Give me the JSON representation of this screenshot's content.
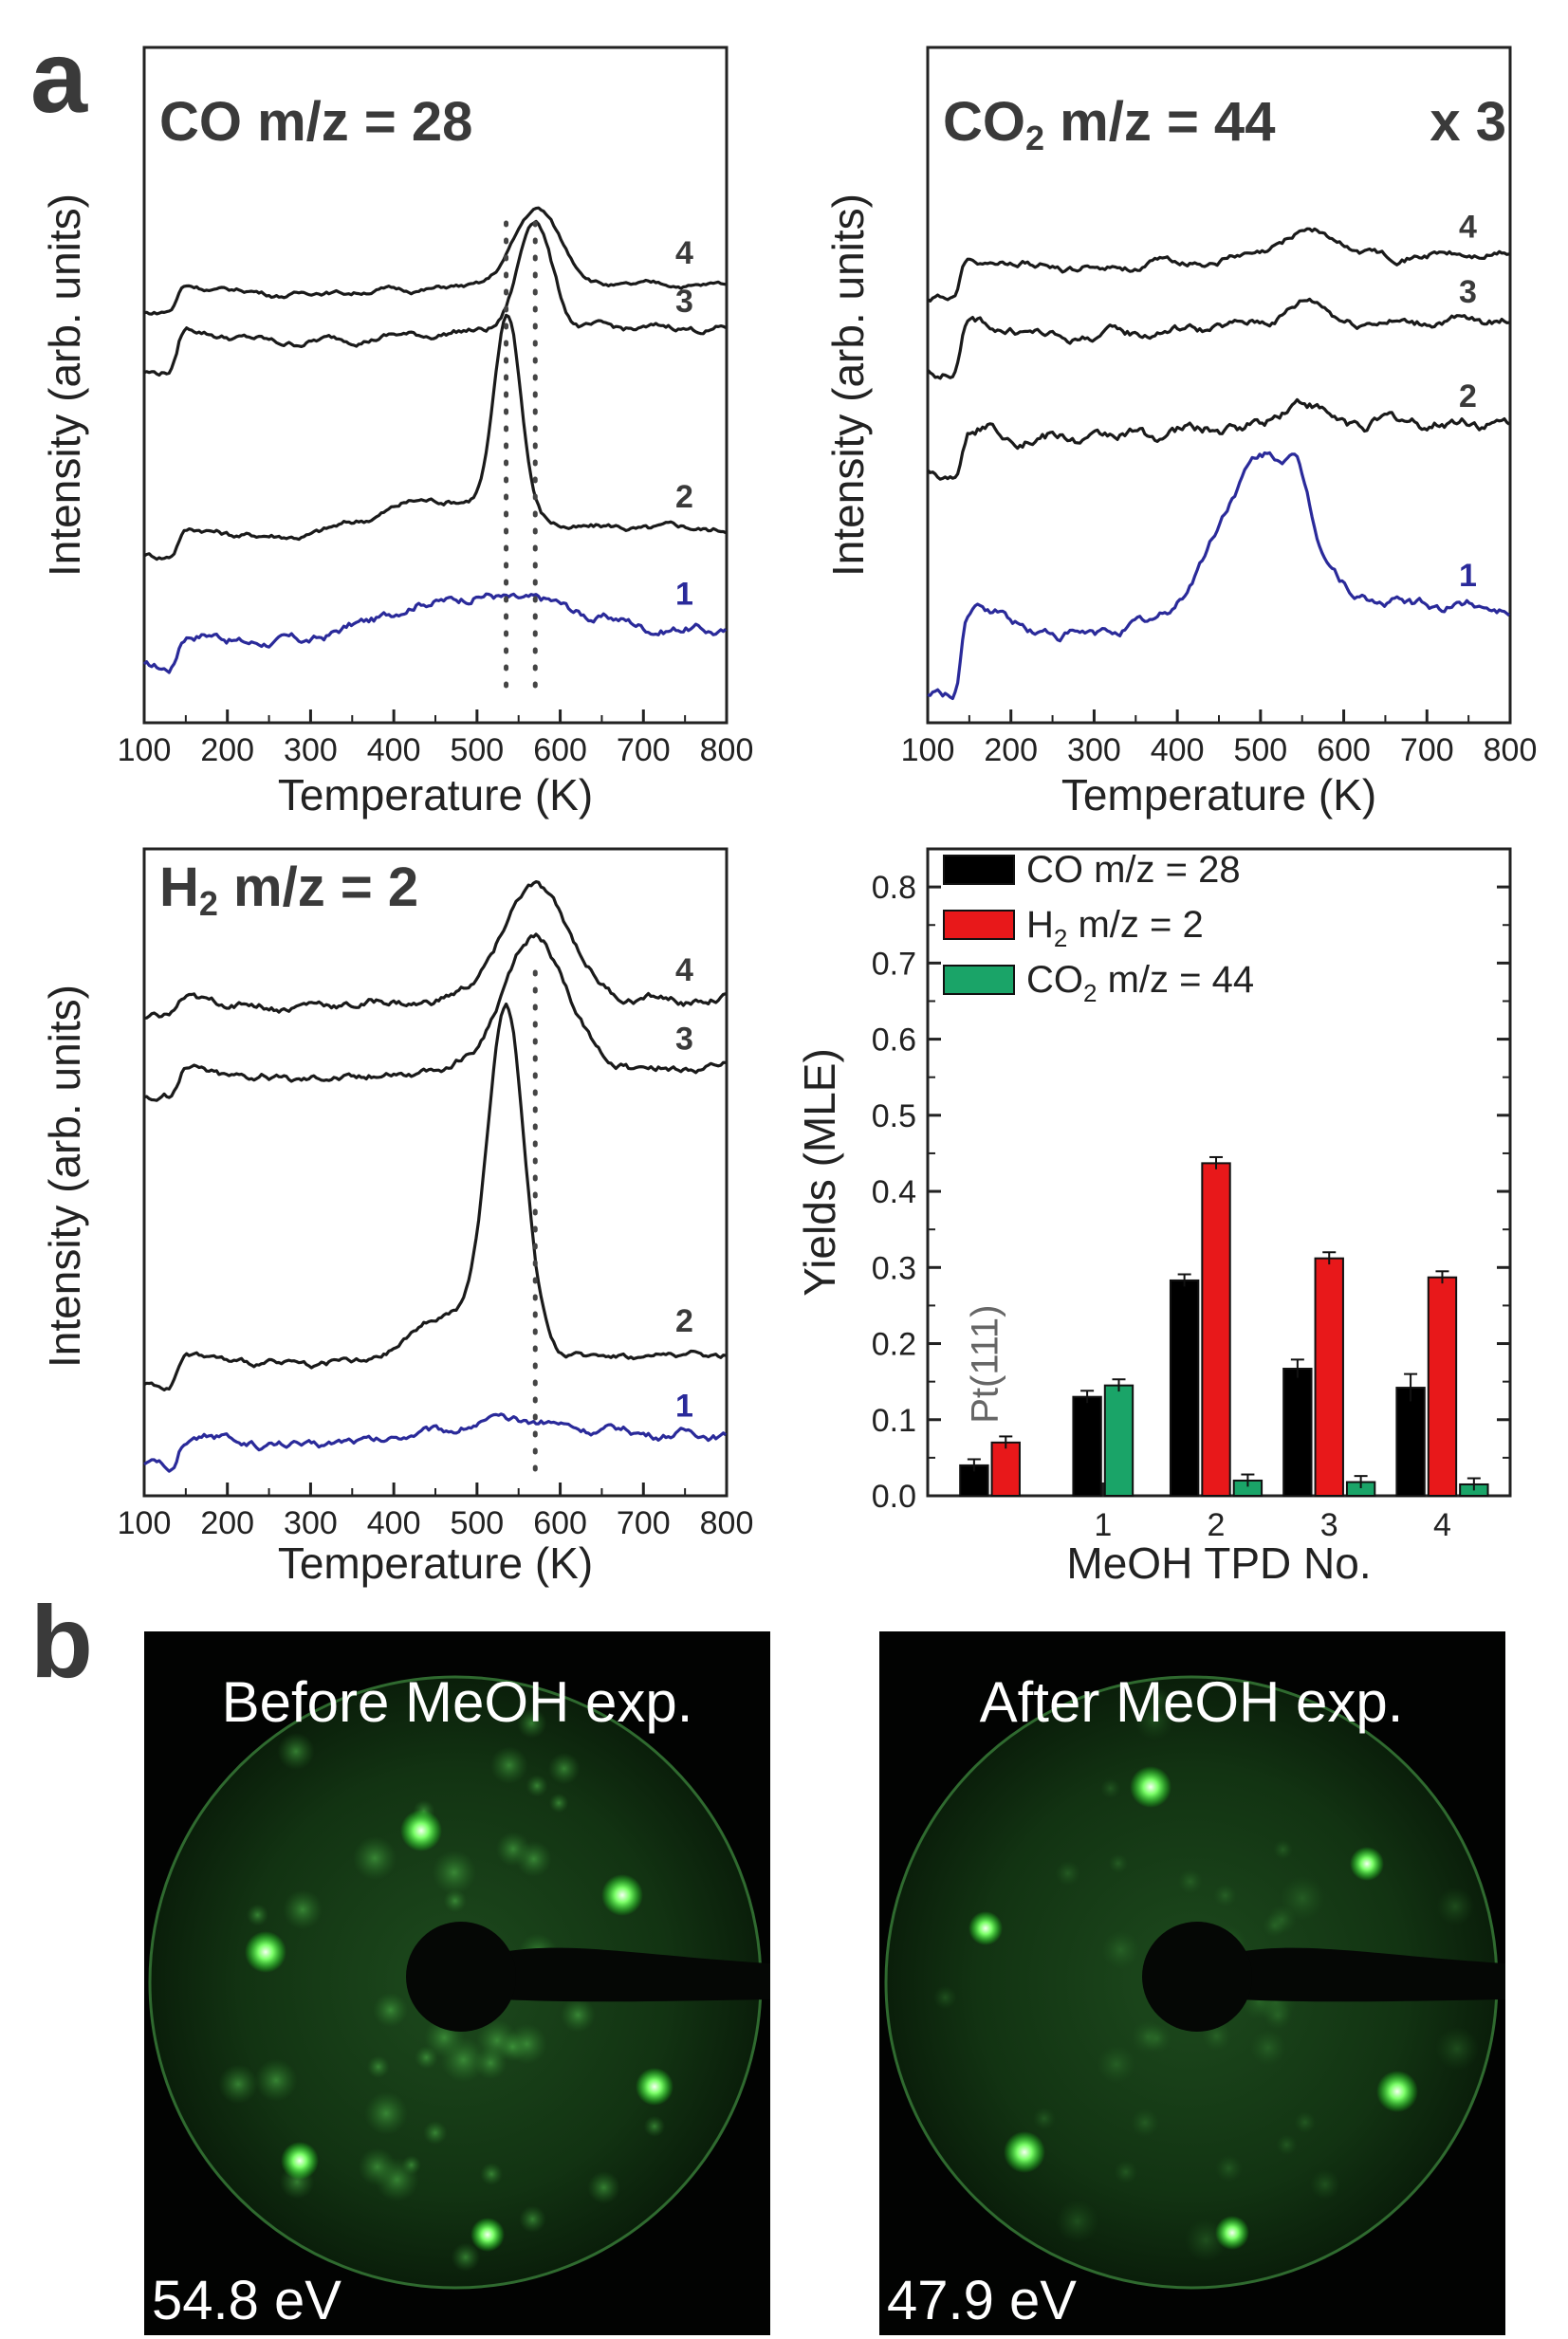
{
  "panel_labels": {
    "a": "a",
    "b": "b"
  },
  "tpd_common": {
    "xlabel": "Temperature (K)",
    "ylabel": "Intensity (arb. units)",
    "xlim": [
      100,
      800
    ],
    "xticks": [
      100,
      200,
      300,
      400,
      500,
      600,
      700,
      800
    ]
  },
  "chart_data": [
    {
      "type": "line",
      "title": "CO m/z = 28",
      "xlabel": "Temperature (K)",
      "ylabel": "Intensity (arb. units)",
      "xlim": [
        100,
        800
      ],
      "ylim": [
        0,
        1
      ],
      "peak_marker_temps": [
        535,
        570
      ],
      "series": [
        {
          "name": "1",
          "color": "#2a2a9a",
          "base": 0.07,
          "step": 0.07,
          "noise": 0.012,
          "peaks": [
            {
              "t": 530,
              "h": 0.06,
              "w": 90
            },
            {
              "t": 420,
              "h": 0.03,
              "w": 60
            }
          ]
        },
        {
          "name": "2",
          "color": "#1a1a1a",
          "base": 0.28,
          "step": 0.05,
          "noise": 0.008,
          "peaks": [
            {
              "t": 537,
              "h": 0.37,
              "w": 16
            },
            {
              "t": 450,
              "h": 0.06,
              "w": 70
            }
          ]
        },
        {
          "name": "3",
          "color": "#1a1a1a",
          "base": 0.62,
          "step": 0.08,
          "noise": 0.008,
          "peaks": [
            {
              "t": 570,
              "h": 0.2,
              "w": 20
            }
          ]
        },
        {
          "name": "4",
          "color": "#1a1a1a",
          "base": 0.73,
          "step": 0.05,
          "noise": 0.006,
          "peaks": [
            {
              "t": 573,
              "h": 0.14,
              "w": 28
            }
          ]
        }
      ]
    },
    {
      "type": "line",
      "title": "CO2 m/z = 44",
      "title_main": "CO",
      "title_sub": "2",
      "title_rest": " m/z = 44",
      "multiplier": "x 3",
      "xlabel": "Temperature (K)",
      "ylabel": "Intensity (arb. units)",
      "xlim": [
        100,
        800
      ],
      "ylim": [
        0,
        1
      ],
      "series": [
        {
          "name": "1",
          "color": "#2a2a9a",
          "base": 0.02,
          "step": 0.18,
          "noise": 0.014,
          "peaks": [
            {
              "t": 500,
              "h": 0.3,
              "w": 50
            },
            {
              "t": 545,
              "h": 0.08,
              "w": 14
            }
          ]
        },
        {
          "name": "2",
          "color": "#1a1a1a",
          "base": 0.46,
          "step": 0.1,
          "noise": 0.016,
          "peaks": [
            {
              "t": 545,
              "h": 0.05,
              "w": 20
            }
          ]
        },
        {
          "name": "3",
          "color": "#1a1a1a",
          "base": 0.66,
          "step": 0.1,
          "noise": 0.012,
          "peaks": [
            {
              "t": 555,
              "h": 0.04,
              "w": 25
            }
          ]
        },
        {
          "name": "4",
          "color": "#1a1a1a",
          "base": 0.81,
          "step": 0.08,
          "noise": 0.01,
          "peaks": [
            {
              "t": 560,
              "h": 0.05,
              "w": 30
            }
          ]
        }
      ]
    },
    {
      "type": "line",
      "title": "H2 m/z = 2",
      "title_main": "H",
      "title_sub": "2",
      "title_rest": " m/z = 2",
      "xlabel": "Temperature (K)",
      "ylabel": "Intensity (arb. units)",
      "xlim": [
        100,
        800
      ],
      "ylim": [
        0,
        1
      ],
      "peak_marker_temps": [
        570
      ],
      "series": [
        {
          "name": "1",
          "color": "#2a2a9a",
          "base": 0.02,
          "step": 0.06,
          "noise": 0.01,
          "peaks": [
            {
              "t": 530,
              "h": 0.025,
              "w": 80
            }
          ]
        },
        {
          "name": "2",
          "color": "#1a1a1a",
          "base": 0.17,
          "step": 0.05,
          "noise": 0.008,
          "peaks": [
            {
              "t": 535,
              "h": 0.62,
              "w": 22
            },
            {
              "t": 460,
              "h": 0.08,
              "w": 35
            }
          ]
        },
        {
          "name": "3",
          "color": "#1a1a1a",
          "base": 0.68,
          "step": 0.05,
          "noise": 0.01,
          "peaks": [
            {
              "t": 570,
              "h": 0.23,
              "w": 38
            }
          ]
        },
        {
          "name": "4",
          "color": "#1a1a1a",
          "base": 0.82,
          "step": 0.03,
          "noise": 0.01,
          "peaks": [
            {
              "t": 570,
              "h": 0.2,
              "w": 40
            }
          ]
        }
      ]
    },
    {
      "type": "bar",
      "title": "",
      "xlabel": "MeOH TPD No.",
      "ylabel": "Yields (MLE)",
      "ylim": [
        0,
        0.85
      ],
      "yticks": [
        0.0,
        0.1,
        0.2,
        0.3,
        0.4,
        0.5,
        0.6,
        0.7,
        0.8
      ],
      "categories": [
        "Pt(111)",
        "1",
        "2",
        "3",
        "4"
      ],
      "series": [
        {
          "name": "CO m/z = 28",
          "color": "#000000",
          "values": [
            0.04,
            0.13,
            0.283,
            0.167,
            0.142
          ],
          "errors": [
            0.008,
            0.008,
            0.008,
            0.012,
            0.018
          ]
        },
        {
          "name": "H2 m/z = 2",
          "color": "#e8181a",
          "values": [
            0.07,
            null,
            0.437,
            0.312,
            0.287
          ],
          "errors": [
            0.008,
            null,
            0.008,
            0.008,
            0.008
          ]
        },
        {
          "name": "CO2 m/z = 44",
          "color": "#1aa468",
          "values": [
            null,
            0.145,
            0.02,
            0.018,
            0.015
          ],
          "errors": [
            null,
            0.008,
            0.008,
            0.008,
            0.008
          ]
        }
      ],
      "legend": [
        {
          "main": "CO m/z = 28",
          "sub": "",
          "rest": ""
        },
        {
          "main": "H",
          "sub": "2",
          "rest": " m/z = 2"
        },
        {
          "main": "CO",
          "sub": "2",
          "rest": " m/z = 44"
        }
      ],
      "legend_position": "top-left"
    }
  ],
  "leed": [
    {
      "caption": "Before MeOH exp.",
      "energy": "54.8 eV"
    },
    {
      "caption": "After MeOH exp.",
      "energy": "47.9 eV"
    }
  ]
}
